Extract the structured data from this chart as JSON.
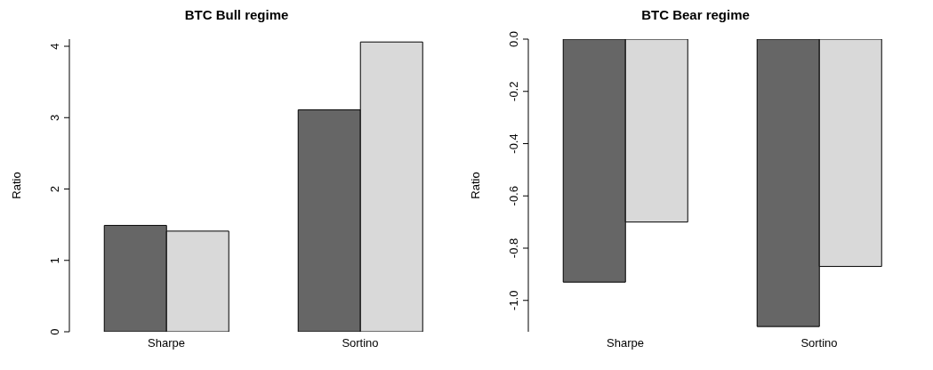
{
  "chart_data": [
    {
      "type": "bar",
      "title": "BTC Bull regime",
      "ylabel": "Ratio",
      "categories": [
        "Sharpe",
        "Sortino"
      ],
      "series": [
        {
          "color": "#666666",
          "values": [
            1.49,
            3.11
          ]
        },
        {
          "color": "#d9d9d9",
          "values": [
            1.41,
            4.06
          ]
        }
      ],
      "ylim": [
        0,
        4.1
      ],
      "yticks": [
        0,
        1,
        2,
        3,
        4
      ],
      "grid": false,
      "legend": false
    },
    {
      "type": "bar",
      "title": "BTC Bear regime",
      "ylabel": "Ratio",
      "categories": [
        "Sharpe",
        "Sortino"
      ],
      "series": [
        {
          "color": "#666666",
          "values": [
            -0.93,
            -1.1
          ]
        },
        {
          "color": "#d9d9d9",
          "values": [
            -0.7,
            -0.87
          ]
        }
      ],
      "ylim": [
        -1.12,
        0
      ],
      "yticks": [
        {
          "value": 0,
          "label": "0.0"
        },
        -0.2,
        -0.4,
        -0.6,
        -0.8,
        {
          "value": -1,
          "label": "-1.0"
        }
      ],
      "grid": false,
      "legend": false
    }
  ]
}
